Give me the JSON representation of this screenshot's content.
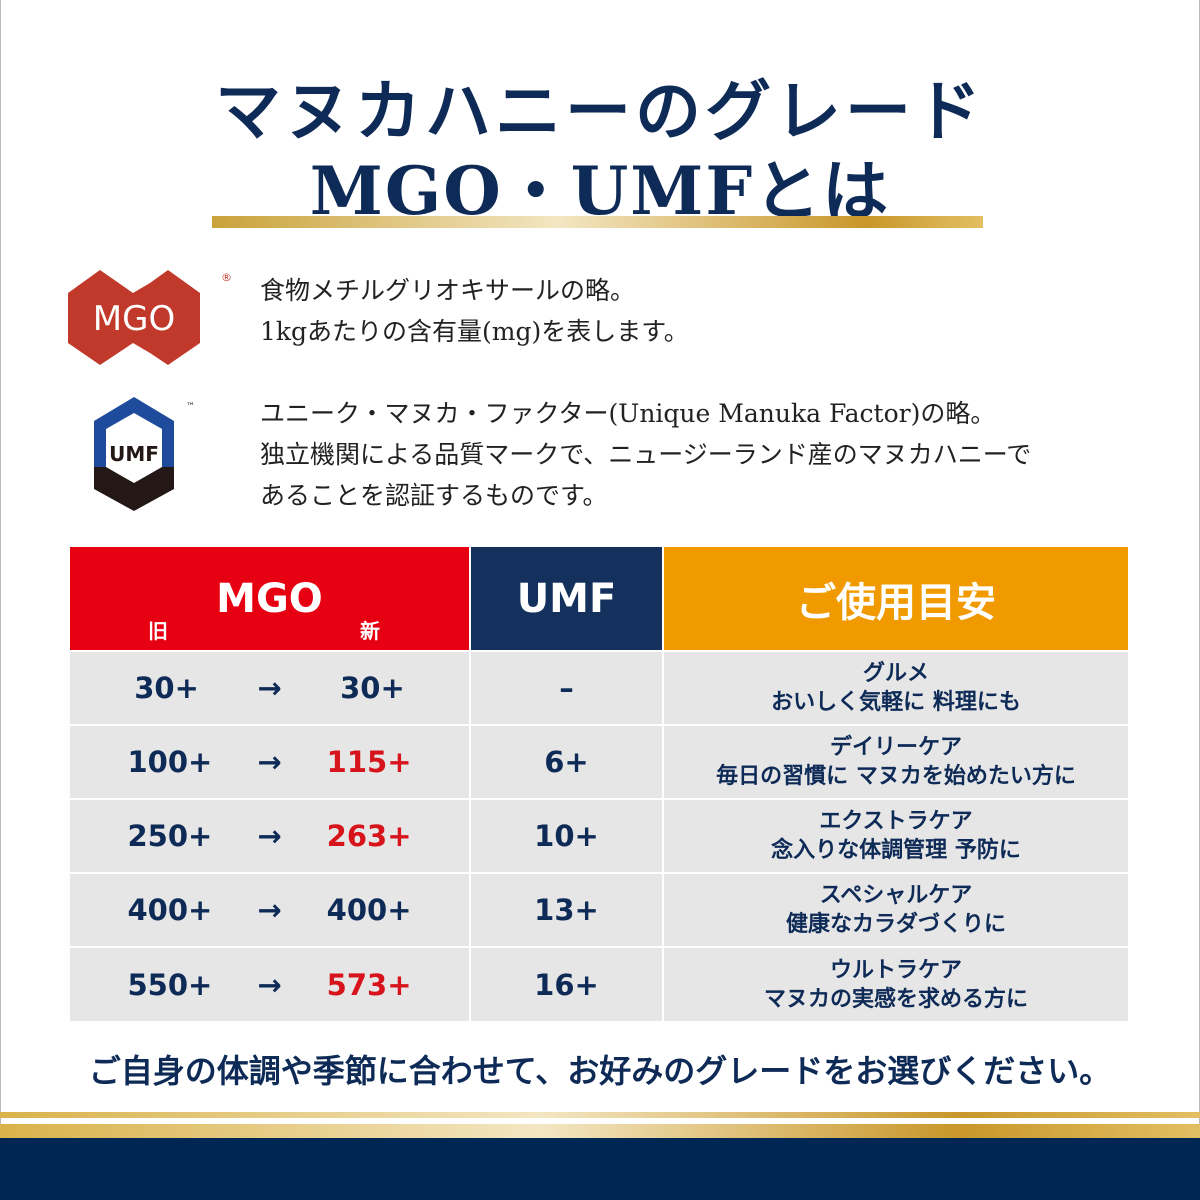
{
  "title": {
    "line1": "マヌカハニーのグレード",
    "line2": "MGO・UMFとは"
  },
  "mgo_logo": {
    "text": "MGO",
    "mark": "®",
    "color": "#c0392b"
  },
  "umf_logo": {
    "text": "UMF",
    "mark": "™",
    "colors": [
      "#1e4b9c",
      "#231815"
    ]
  },
  "mgo_desc": [
    "食物メチルグリオキサールの略。",
    "1kgあたりの含有量(mg)を表します。"
  ],
  "umf_desc": [
    "ユニーク・マヌカ・ファクター(Unique Manuka Factor)の略。",
    "独立機関による品質マークで、ニュージーランド産のマヌカハニーで",
    "あることを認証するものです。"
  ],
  "table": {
    "headers": {
      "mgo": "MGO",
      "old": "旧",
      "new": "新",
      "umf": "UMF",
      "usage": "ご使用目安"
    },
    "header_colors": {
      "mgo": "#e60012",
      "umf": "#13315c",
      "usage": "#f09a00"
    },
    "arrow": "→",
    "rows": [
      {
        "old": "30+",
        "new": "30+",
        "new_changed": false,
        "umf": "–",
        "usage1": "グルメ",
        "usage2": "おいしく気軽に 料理にも"
      },
      {
        "old": "100+",
        "new": "115+",
        "new_changed": true,
        "umf": "6+",
        "usage1": "デイリーケア",
        "usage2": "毎日の習慣に マヌカを始めたい方に"
      },
      {
        "old": "250+",
        "new": "263+",
        "new_changed": true,
        "umf": "10+",
        "usage1": "エクストラケア",
        "usage2": "念入りな体調管理 予防に"
      },
      {
        "old": "400+",
        "new": "400+",
        "new_changed": false,
        "umf": "13+",
        "usage1": "スペシャルケア",
        "usage2": "健康なカラダづくりに"
      },
      {
        "old": "550+",
        "new": "573+",
        "new_changed": true,
        "umf": "16+",
        "usage1": "ウルトラケア",
        "usage2": "マヌカの実感を求める方に"
      }
    ]
  },
  "closing": "ご自身の体調や季節に合わせて、お好みのグレードをお選びください。"
}
